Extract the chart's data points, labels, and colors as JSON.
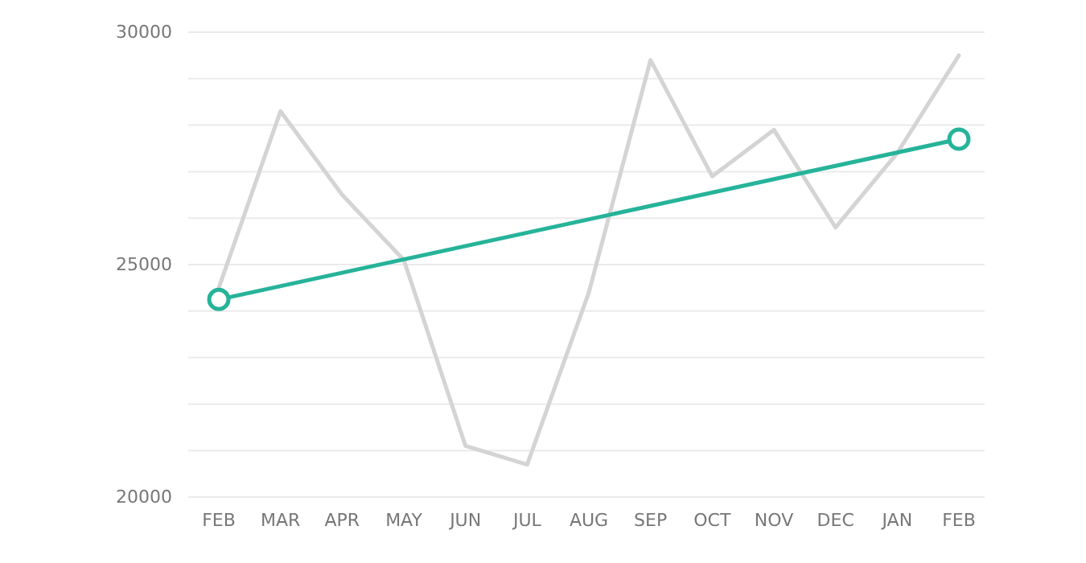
{
  "chart_data": {
    "type": "line",
    "categories": [
      "FEB",
      "MAR",
      "APR",
      "MAY",
      "JUN",
      "JUL",
      "AUG",
      "SEP",
      "OCT",
      "NOV",
      "DEC",
      "JAN",
      "FEB"
    ],
    "series": [
      {
        "color": "#d4d4d4",
        "marker": "none",
        "values": [
          24500,
          28300,
          26500,
          25100,
          21100,
          20700,
          24400,
          29400,
          26900,
          27900,
          25800,
          27400,
          29500
        ]
      },
      {
        "color": "#26b39a",
        "marker": "circle",
        "values": [
          24250,
          null,
          null,
          null,
          null,
          null,
          null,
          null,
          null,
          null,
          null,
          null,
          27700
        ]
      }
    ],
    "ylim": [
      20000,
      30000
    ],
    "yticks": [
      20000,
      {
        "value": 21000,
        "label": null
      },
      {
        "value": 22000,
        "label": null
      },
      {
        "value": 23000,
        "label": null
      },
      {
        "value": 24000,
        "label": null
      },
      25000,
      {
        "value": 26000,
        "label": null
      },
      {
        "value": 27000,
        "label": null
      },
      {
        "value": 28000,
        "label": null
      },
      {
        "value": 29000,
        "label": null
      },
      30000
    ],
    "grid": "y"
  }
}
